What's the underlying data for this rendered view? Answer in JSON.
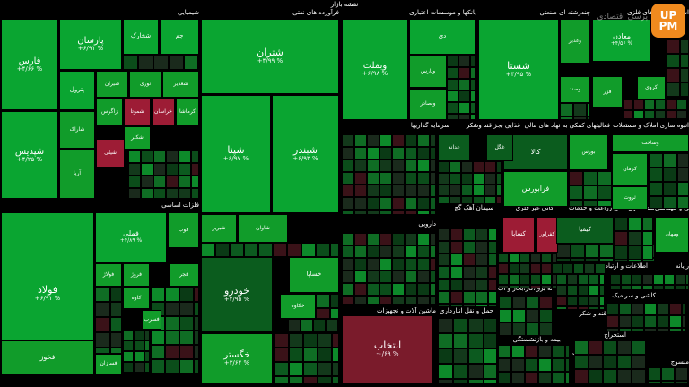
{
  "title": "نقشه بازار",
  "colors": {
    "up_strong": "#0aa531",
    "up": "#119c2a",
    "up_dark": "#0b5c1e",
    "flat": "#1f3a22",
    "down": "#7a1b2b",
    "down_strong": "#9d1c35"
  },
  "logo": {
    "line1": "UP",
    "line2": "PM"
  },
  "brand": "پرسی اقتصادی",
  "chart_data": {
    "type": "treemap",
    "sectors": [
      {
        "name": "شیمیایی"
      },
      {
        "name": "فرآورده های نفتی"
      },
      {
        "name": "بانکها و موسسات اعتباری"
      },
      {
        "name": "چندرشته ای صنعتی"
      },
      {
        "name": "استخراج کانه های فلزی"
      },
      {
        "name": "فلزات اساسی"
      },
      {
        "name": "خودرو و قطعات"
      },
      {
        "name": "سرمایه گذاریها"
      },
      {
        "name": "غذایی بجز قند وشکر"
      },
      {
        "name": "فعالیتهای کمکی به نهاد های مالی"
      },
      {
        "name": "انبوه سازی املاک و مستغلات"
      },
      {
        "name": "سیمان آهک گچ"
      },
      {
        "name": "کانی غیر فلزی"
      },
      {
        "name": "زراعت و خدمات"
      },
      {
        "name": "واسطه گری مالی"
      },
      {
        "name": "فنی و مهندسی"
      },
      {
        "name": "دارویی"
      },
      {
        "name": "ماشین آلات و تجهیزات"
      },
      {
        "name": "اطلاعات و ارتباطات"
      },
      {
        "name": "رایانه"
      },
      {
        "name": "محصولات فلزی"
      },
      {
        "name": "حمل و نقل انبارداری"
      },
      {
        "name": "عرضه برق،گاز،بخار و آب"
      },
      {
        "name": "قند و شکر"
      },
      {
        "name": "کاشی و سرامیک"
      },
      {
        "name": "محصولات کاغذی"
      },
      {
        "name": "بیمه و بازنشستگی"
      },
      {
        "name": "استخراج"
      },
      {
        "name": "لاستیک و پلاستیک"
      },
      {
        "name": "منسوج"
      }
    ],
    "cells": [
      {
        "name": "فارس",
        "change": "+۴/۶۶ %",
        "state": "up_strong"
      },
      {
        "name": "شپدیس",
        "change": "+۴/۲۵ %",
        "state": "up_strong"
      },
      {
        "name": "پارسان",
        "change": "+۶/۹۱ %",
        "state": "up_strong"
      },
      {
        "name": "شخارک",
        "change": "",
        "state": "up_strong"
      },
      {
        "name": "جم",
        "change": "",
        "state": "up_strong"
      },
      {
        "name": "پترول",
        "change": "",
        "state": "up_strong"
      },
      {
        "name": "شیران",
        "change": "",
        "state": "up"
      },
      {
        "name": "نوری",
        "change": "",
        "state": "up"
      },
      {
        "name": "شغدیر",
        "change": "",
        "state": "up"
      },
      {
        "name": "شاراک",
        "change": "",
        "state": "up"
      },
      {
        "name": "زاگرس",
        "change": "",
        "state": "up"
      },
      {
        "name": "شموتا",
        "change": "",
        "state": "down_strong"
      },
      {
        "name": "خراسان",
        "change": "",
        "state": "down_strong"
      },
      {
        "name": "کرماشا",
        "change": "",
        "state": "up"
      },
      {
        "name": "شکلر",
        "change": "",
        "state": "up"
      },
      {
        "name": "شیلی",
        "change": "",
        "state": "down_strong"
      },
      {
        "name": "آریا",
        "change": "",
        "state": "up"
      },
      {
        "name": "شتران",
        "change": "+۴/۹۹ %",
        "state": "up_strong"
      },
      {
        "name": "شپنا",
        "change": "+۶/۹۷ %",
        "state": "up_strong"
      },
      {
        "name": "شبندر",
        "change": "+۶/۹۳ %",
        "state": "up_strong"
      },
      {
        "name": "شبریز",
        "change": "",
        "state": "up"
      },
      {
        "name": "شاوان",
        "change": "",
        "state": "up"
      },
      {
        "name": "وبملت",
        "change": "+۶/۹۸ %",
        "state": "up_strong"
      },
      {
        "name": "دی",
        "change": "",
        "state": "up_strong"
      },
      {
        "name": "وپارس",
        "change": "",
        "state": "up"
      },
      {
        "name": "وبصادر",
        "change": "",
        "state": "up"
      },
      {
        "name": "شستا",
        "change": "+۴/۹۵ %",
        "state": "up_strong"
      },
      {
        "name": "وغدیر",
        "change": "",
        "state": "up"
      },
      {
        "name": "وصند",
        "change": "",
        "state": "up"
      },
      {
        "name": "معادن",
        "change": "+۴/۵۶ %",
        "state": "up_strong"
      },
      {
        "name": "فزر",
        "change": "",
        "state": "up"
      },
      {
        "name": "کروی",
        "change": "",
        "state": "up"
      },
      {
        "name": "فولاد",
        "change": "+۶/۹۱ %",
        "state": "up_strong"
      },
      {
        "name": "فملی",
        "change": "+۴/۸۹ %",
        "state": "up_strong"
      },
      {
        "name": "فوب",
        "change": "",
        "state": "up"
      },
      {
        "name": "فولاژ",
        "change": "",
        "state": "up"
      },
      {
        "name": "فروژ",
        "change": "",
        "state": "up"
      },
      {
        "name": "فجر",
        "change": "",
        "state": "up"
      },
      {
        "name": "کاوه",
        "change": "",
        "state": "up"
      },
      {
        "name": "فسرب",
        "change": "",
        "state": "up"
      },
      {
        "name": "فخوز",
        "change": "",
        "state": "up"
      },
      {
        "name": "فسازان",
        "change": "",
        "state": "up"
      },
      {
        "name": "خودرو",
        "change": "+۴/۹۵ %",
        "state": "up_dark"
      },
      {
        "name": "خساپا",
        "change": "",
        "state": "up"
      },
      {
        "name": "خکاوه",
        "change": "",
        "state": "up"
      },
      {
        "name": "خگستر",
        "change": "+۳/۶۴ %",
        "state": "up"
      },
      {
        "name": "انتخاب",
        "change": "-۰/۶۹ %",
        "state": "down"
      },
      {
        "name": "کالا",
        "change": "",
        "state": "up_dark"
      },
      {
        "name": "بورس",
        "change": "",
        "state": "up"
      },
      {
        "name": "فرابورس",
        "change": "",
        "state": "up"
      },
      {
        "name": "وساخت",
        "change": "",
        "state": "up"
      },
      {
        "name": "کرمان",
        "change": "",
        "state": "up"
      },
      {
        "name": "ثروت",
        "change": "",
        "state": "up"
      },
      {
        "name": "غدانه",
        "change": "",
        "state": "up_dark"
      },
      {
        "name": "غگل",
        "change": "",
        "state": "up_dark"
      },
      {
        "name": "کساپا",
        "change": "",
        "state": "down_strong"
      },
      {
        "name": "کفراور",
        "change": "",
        "state": "down_strong"
      },
      {
        "name": "کیمیا",
        "change": "",
        "state": "up_dark"
      },
      {
        "name": "ومهان",
        "change": "",
        "state": "up"
      }
    ]
  }
}
